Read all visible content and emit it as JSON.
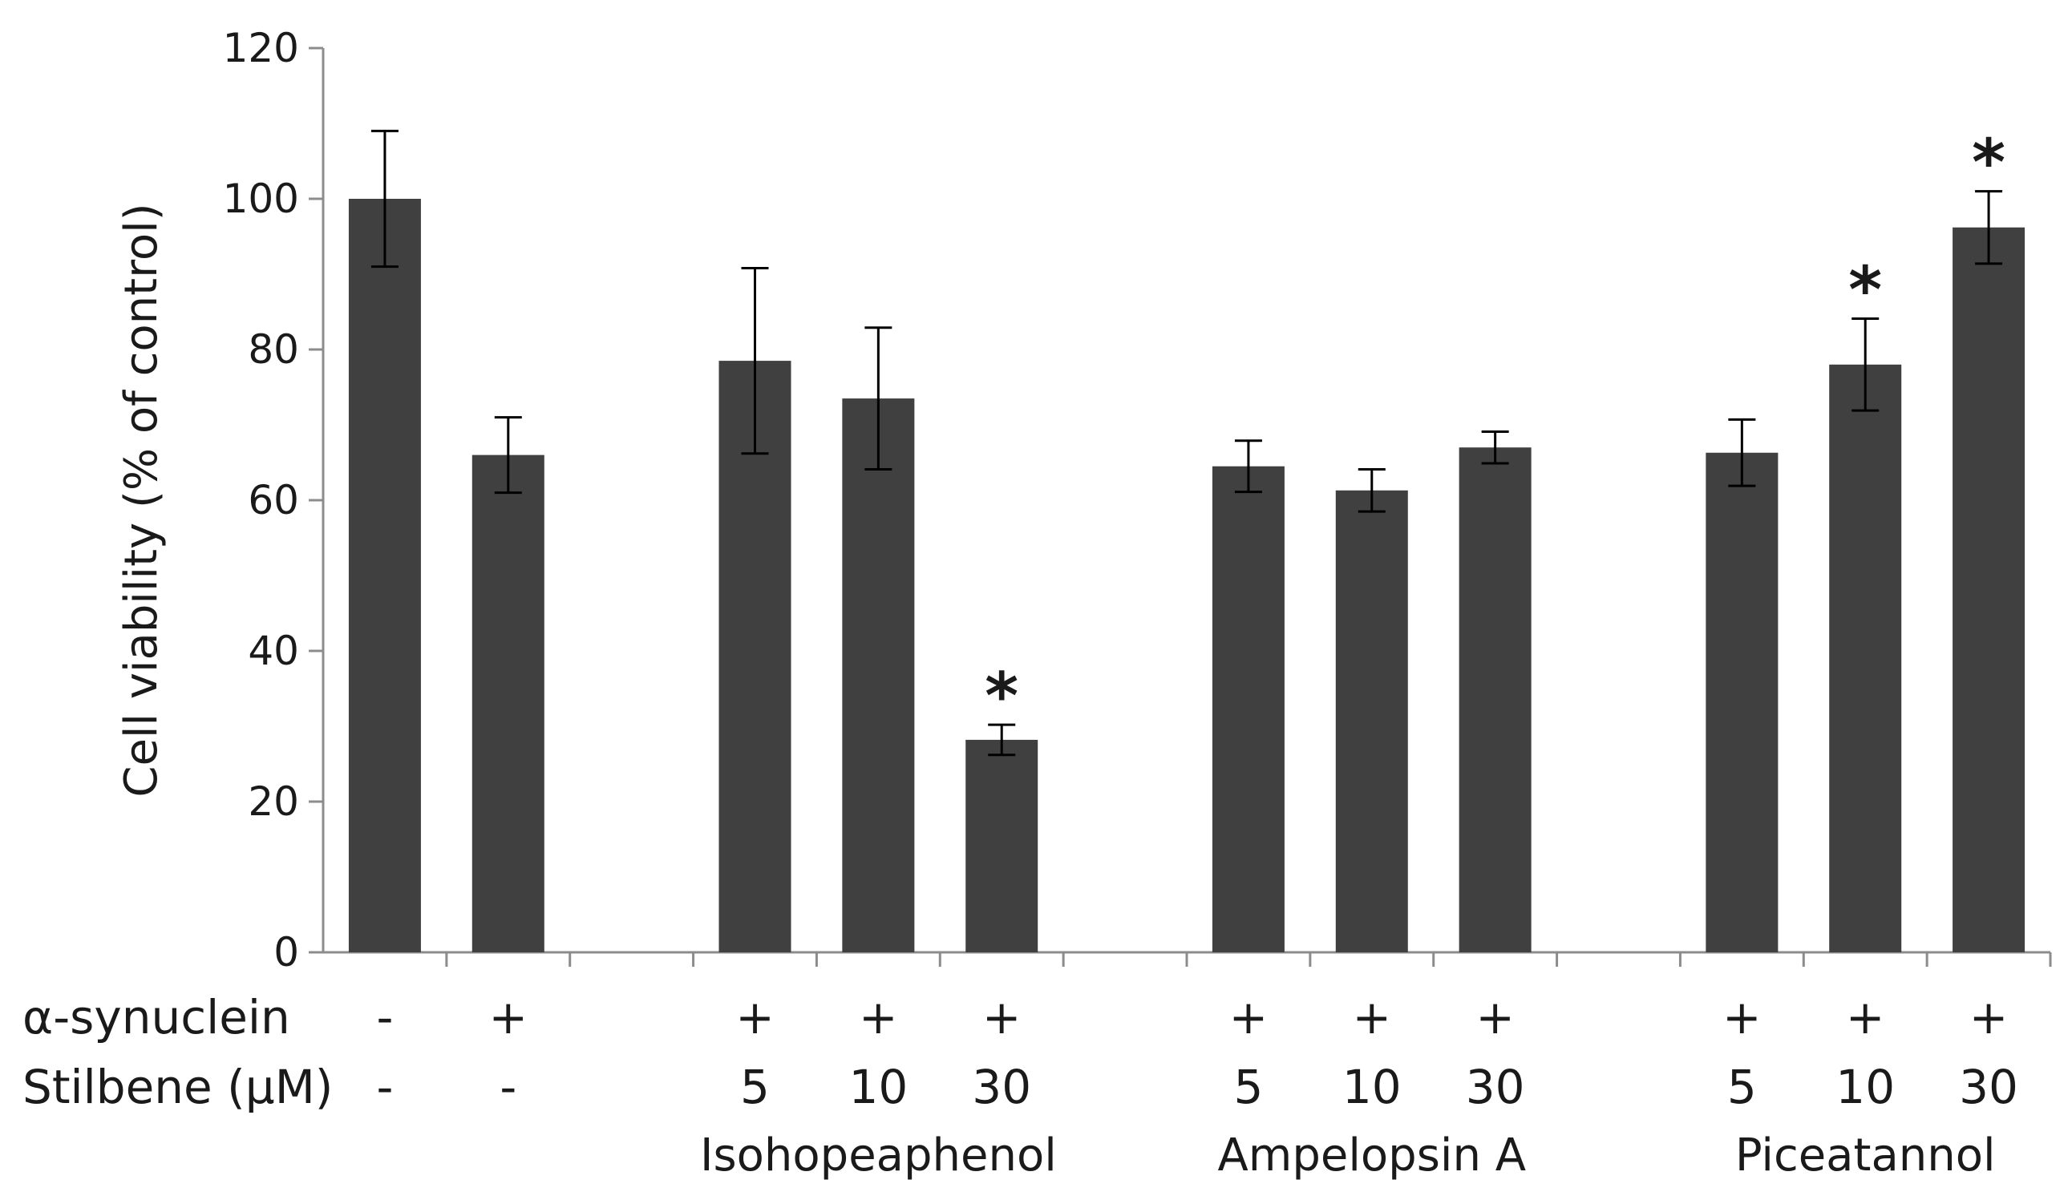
{
  "chart_data": {
    "type": "bar",
    "ylabel": "Cell viability (% of control)",
    "ylim": [
      0,
      120
    ],
    "yticks": [
      0,
      20,
      40,
      60,
      80,
      100,
      120
    ],
    "grid": false,
    "legend": "none",
    "bar_color": "#404040",
    "slots": [
      {
        "value": 100,
        "error": 9,
        "sig": "",
        "synuclein": "-",
        "stilbene": "-"
      },
      {
        "value": 66,
        "error": 5,
        "sig": "",
        "synuclein": "+",
        "stilbene": "-"
      },
      null,
      {
        "value": 78.5,
        "error": 12.3,
        "sig": "",
        "synuclein": "+",
        "stilbene": "5"
      },
      {
        "value": 73.5,
        "error": 9.4,
        "sig": "",
        "synuclein": "+",
        "stilbene": "10"
      },
      {
        "value": 28.2,
        "error": 2,
        "sig": "*",
        "synuclein": "+",
        "stilbene": "30"
      },
      null,
      {
        "value": 64.5,
        "error": 3.4,
        "sig": "",
        "synuclein": "+",
        "stilbene": "5"
      },
      {
        "value": 61.3,
        "error": 2.8,
        "sig": "",
        "synuclein": "+",
        "stilbene": "10"
      },
      {
        "value": 67,
        "error": 2.1,
        "sig": "",
        "synuclein": "+",
        "stilbene": "30"
      },
      null,
      {
        "value": 66.3,
        "error": 4.4,
        "sig": "",
        "synuclein": "+",
        "stilbene": "5"
      },
      {
        "value": 78,
        "error": 6.1,
        "sig": "*",
        "synuclein": "+",
        "stilbene": "10"
      },
      {
        "value": 96.2,
        "error": 4.8,
        "sig": "*",
        "synuclein": "+",
        "stilbene": "30"
      }
    ],
    "row_labels": {
      "synuclein": "α-synuclein",
      "stilbene": "Stilbene (μM)"
    },
    "groups": [
      {
        "name": "Isohopeaphenol",
        "slots": [
          3,
          5
        ]
      },
      {
        "name": "Ampelopsin A",
        "slots": [
          7,
          9
        ]
      },
      {
        "name": "Piceatannol",
        "slots": [
          11,
          13
        ]
      }
    ]
  }
}
